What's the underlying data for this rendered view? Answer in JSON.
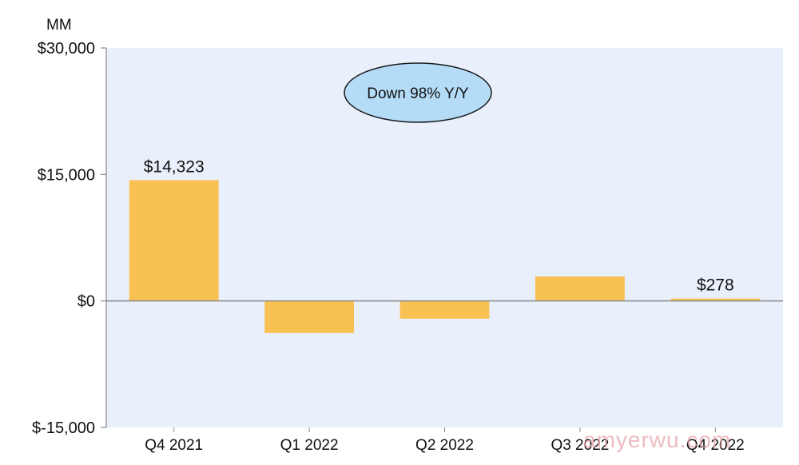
{
  "chart_data": {
    "type": "bar",
    "y_unit": "MM",
    "categories": [
      "Q4 2021",
      "Q1 2022",
      "Q2 2022",
      "Q3 2022",
      "Q4 2022"
    ],
    "values": [
      14323,
      -3800,
      -2100,
      2900,
      278
    ],
    "data_labels": [
      "$14,323",
      "",
      "",
      "",
      "$278"
    ],
    "ylim": [
      -15000,
      30000
    ],
    "y_ticks": [
      {
        "value": 30000,
        "label": "$30,000"
      },
      {
        "value": 15000,
        "label": "$15,000"
      },
      {
        "value": 0,
        "label": "$0"
      },
      {
        "value": -15000,
        "label": "$-15,000"
      }
    ],
    "annotation": "Down 98% Y/Y",
    "grid": false,
    "colors": {
      "bar": "#f9c052",
      "plot_background": "#e9f0fb",
      "axis": "#8a8a8a",
      "callout_fill": "#b5dcf7",
      "callout_stroke": "#1a1a1a"
    }
  },
  "watermark": "amyerwu.com"
}
